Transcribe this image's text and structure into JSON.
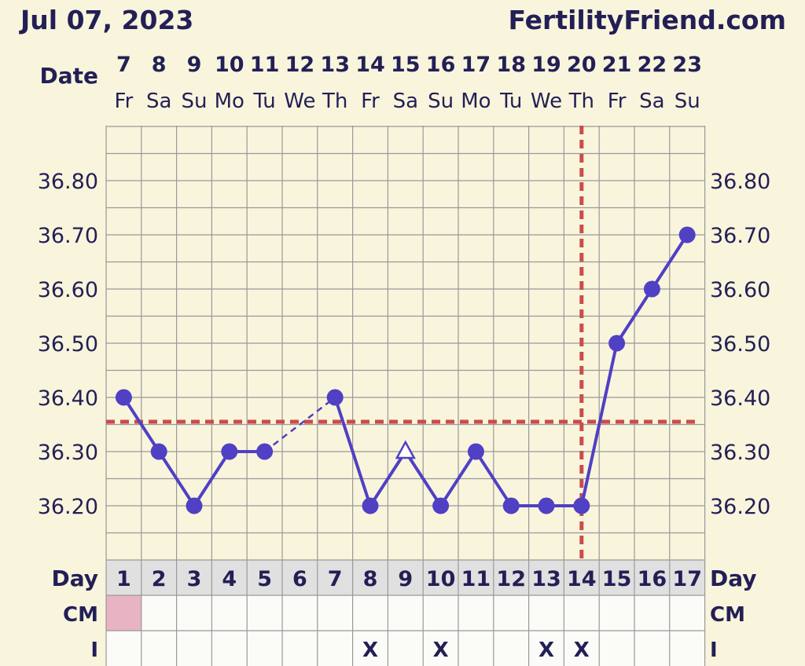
{
  "header": {
    "date_title": "Jul 07, 2023",
    "site": "FertilityFriend.com"
  },
  "colors": {
    "background": "#f8f5dc",
    "grid": "#999999",
    "line": "#5040c4",
    "cover_line": "#cc4b4b",
    "text": "#231f56",
    "row_header_bg": "#e0e0e0",
    "cm_highlight": "#e8b4c4"
  },
  "chart_data": {
    "type": "line",
    "date_label": "Date",
    "day_label": "Day",
    "cm_label": "CM",
    "i_label": "I",
    "x": [
      "7",
      "8",
      "9",
      "10",
      "11",
      "12",
      "13",
      "14",
      "15",
      "16",
      "17",
      "18",
      "19",
      "20",
      "21",
      "22",
      "23"
    ],
    "weekdays": [
      "Fr",
      "Sa",
      "Su",
      "Mo",
      "Tu",
      "We",
      "Th",
      "Fr",
      "Sa",
      "Su",
      "Mo",
      "Tu",
      "We",
      "Th",
      "Fr",
      "Sa",
      "Su"
    ],
    "cycle_days": [
      "1",
      "2",
      "3",
      "4",
      "5",
      "6",
      "7",
      "8",
      "9",
      "10",
      "11",
      "12",
      "13",
      "14",
      "15",
      "16",
      "17"
    ],
    "y_ticks": [
      "36.80",
      "36.70",
      "36.60",
      "36.50",
      "36.40",
      "36.30",
      "36.20"
    ],
    "ylim": [
      36.11,
      36.91
    ],
    "temperatures": [
      36.4,
      36.3,
      36.2,
      36.3,
      36.3,
      null,
      36.4,
      36.2,
      36.3,
      36.2,
      36.3,
      36.2,
      36.2,
      36.2,
      36.5,
      36.6,
      36.7
    ],
    "marker_types": [
      "dot",
      "dot",
      "dot",
      "dot",
      "dot",
      null,
      "dot",
      "dot",
      "open-triangle",
      "dot",
      "dot",
      "dot",
      "dot",
      "dot",
      "dot",
      "dot",
      "dot"
    ],
    "interpolated_segments": [
      [
        5,
        7
      ]
    ],
    "cover_line": 36.355,
    "ovulation_day": 14,
    "cm_highlight_days": [
      1
    ],
    "intercourse_marker": "X",
    "intercourse_days": [
      8,
      10,
      13,
      14
    ],
    "grid": true
  }
}
